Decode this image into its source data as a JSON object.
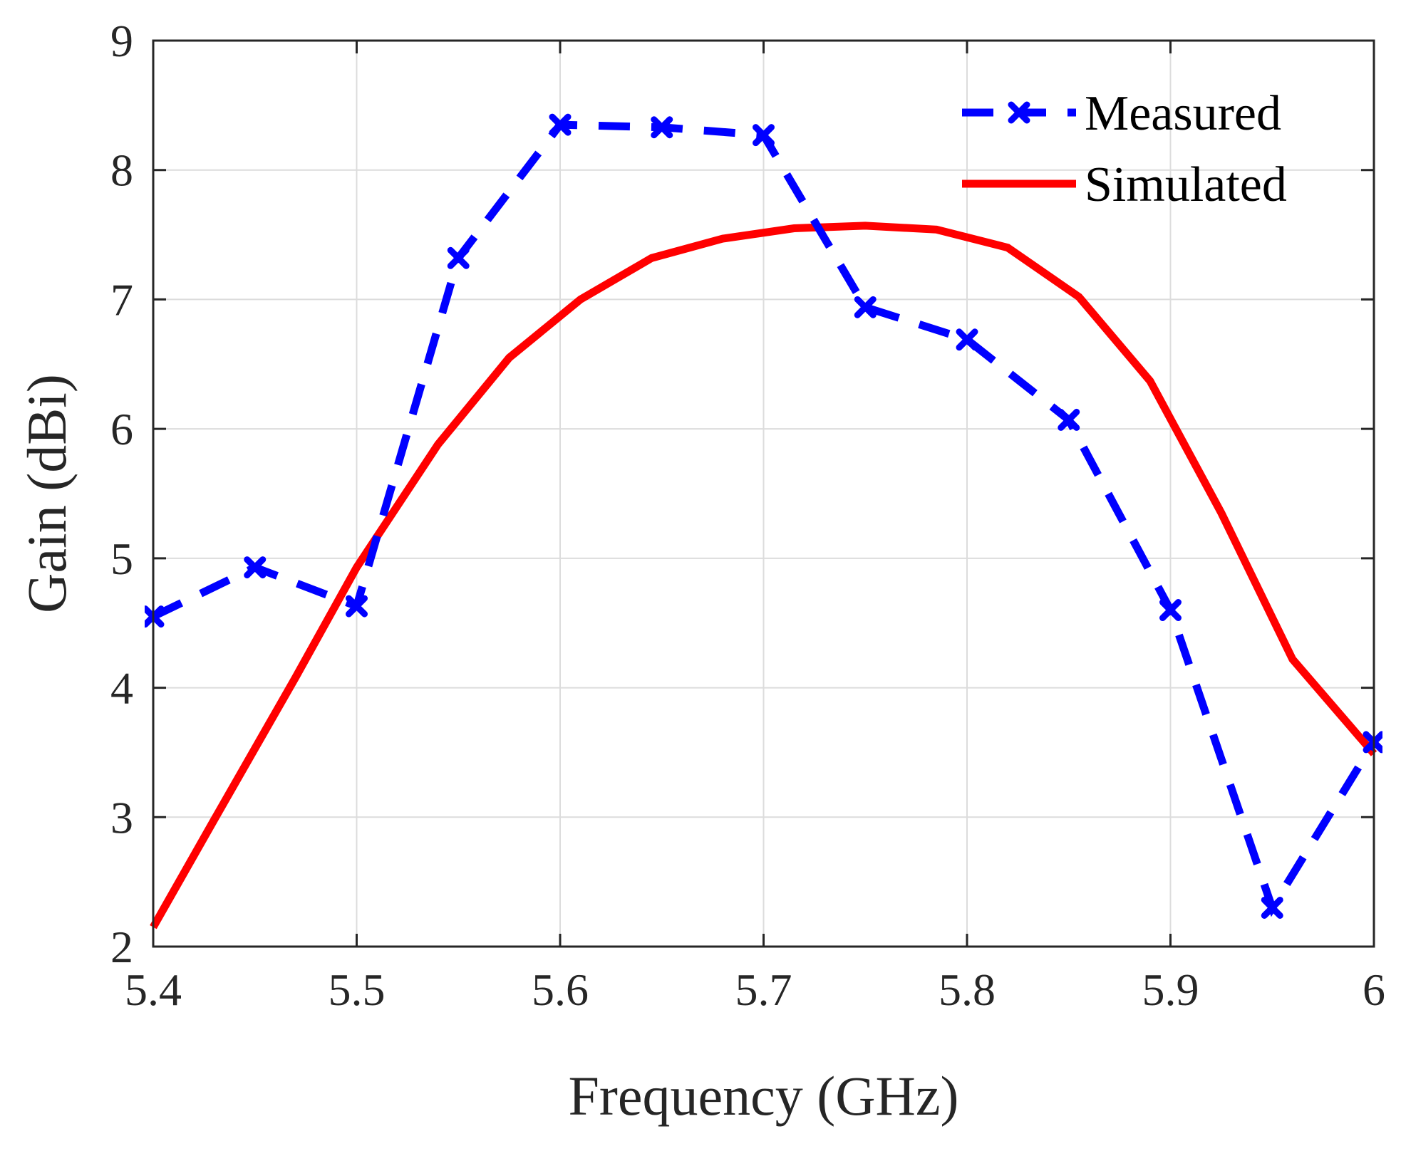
{
  "chart_data": {
    "type": "line",
    "title": "",
    "xlabel": "Frequency (GHz)",
    "ylabel": "Gain (dBi)",
    "xlim": [
      5.4,
      6.0
    ],
    "ylim": [
      2,
      9
    ],
    "grid": true,
    "legend_position": "top-right",
    "x_ticks": [
      5.4,
      5.5,
      5.6,
      5.7,
      5.8,
      5.9,
      6.0
    ],
    "x_tick_labels": [
      "5.4",
      "5.5",
      "5.6",
      "5.7",
      "5.8",
      "5.9",
      "6"
    ],
    "y_ticks": [
      2,
      3,
      4,
      5,
      6,
      7,
      8,
      9
    ],
    "y_tick_labels": [
      "2",
      "3",
      "4",
      "5",
      "6",
      "7",
      "8",
      "9"
    ],
    "series": [
      {
        "name": "Measured",
        "style": "dashed",
        "marker": "x",
        "color": "#0000FF",
        "x": [
          5.4,
          5.45,
          5.5,
          5.55,
          5.6,
          5.65,
          5.7,
          5.75,
          5.8,
          5.85,
          5.9,
          5.95,
          6.0
        ],
        "values": [
          4.55,
          4.93,
          4.63,
          7.32,
          8.35,
          8.33,
          8.27,
          6.94,
          6.69,
          6.07,
          4.6,
          2.3,
          3.58
        ]
      },
      {
        "name": "Simulated",
        "style": "solid",
        "marker": "none",
        "color": "#FF0000",
        "x": [
          5.4,
          5.43,
          5.47,
          5.5,
          5.54,
          5.575,
          5.61,
          5.645,
          5.68,
          5.715,
          5.75,
          5.785,
          5.82,
          5.855,
          5.89,
          5.925,
          5.96,
          6.0
        ],
        "values": [
          2.15,
          2.98,
          4.08,
          4.93,
          5.88,
          6.55,
          7.0,
          7.32,
          7.47,
          7.55,
          7.57,
          7.54,
          7.4,
          7.02,
          6.37,
          5.35,
          4.22,
          3.49
        ]
      }
    ]
  }
}
